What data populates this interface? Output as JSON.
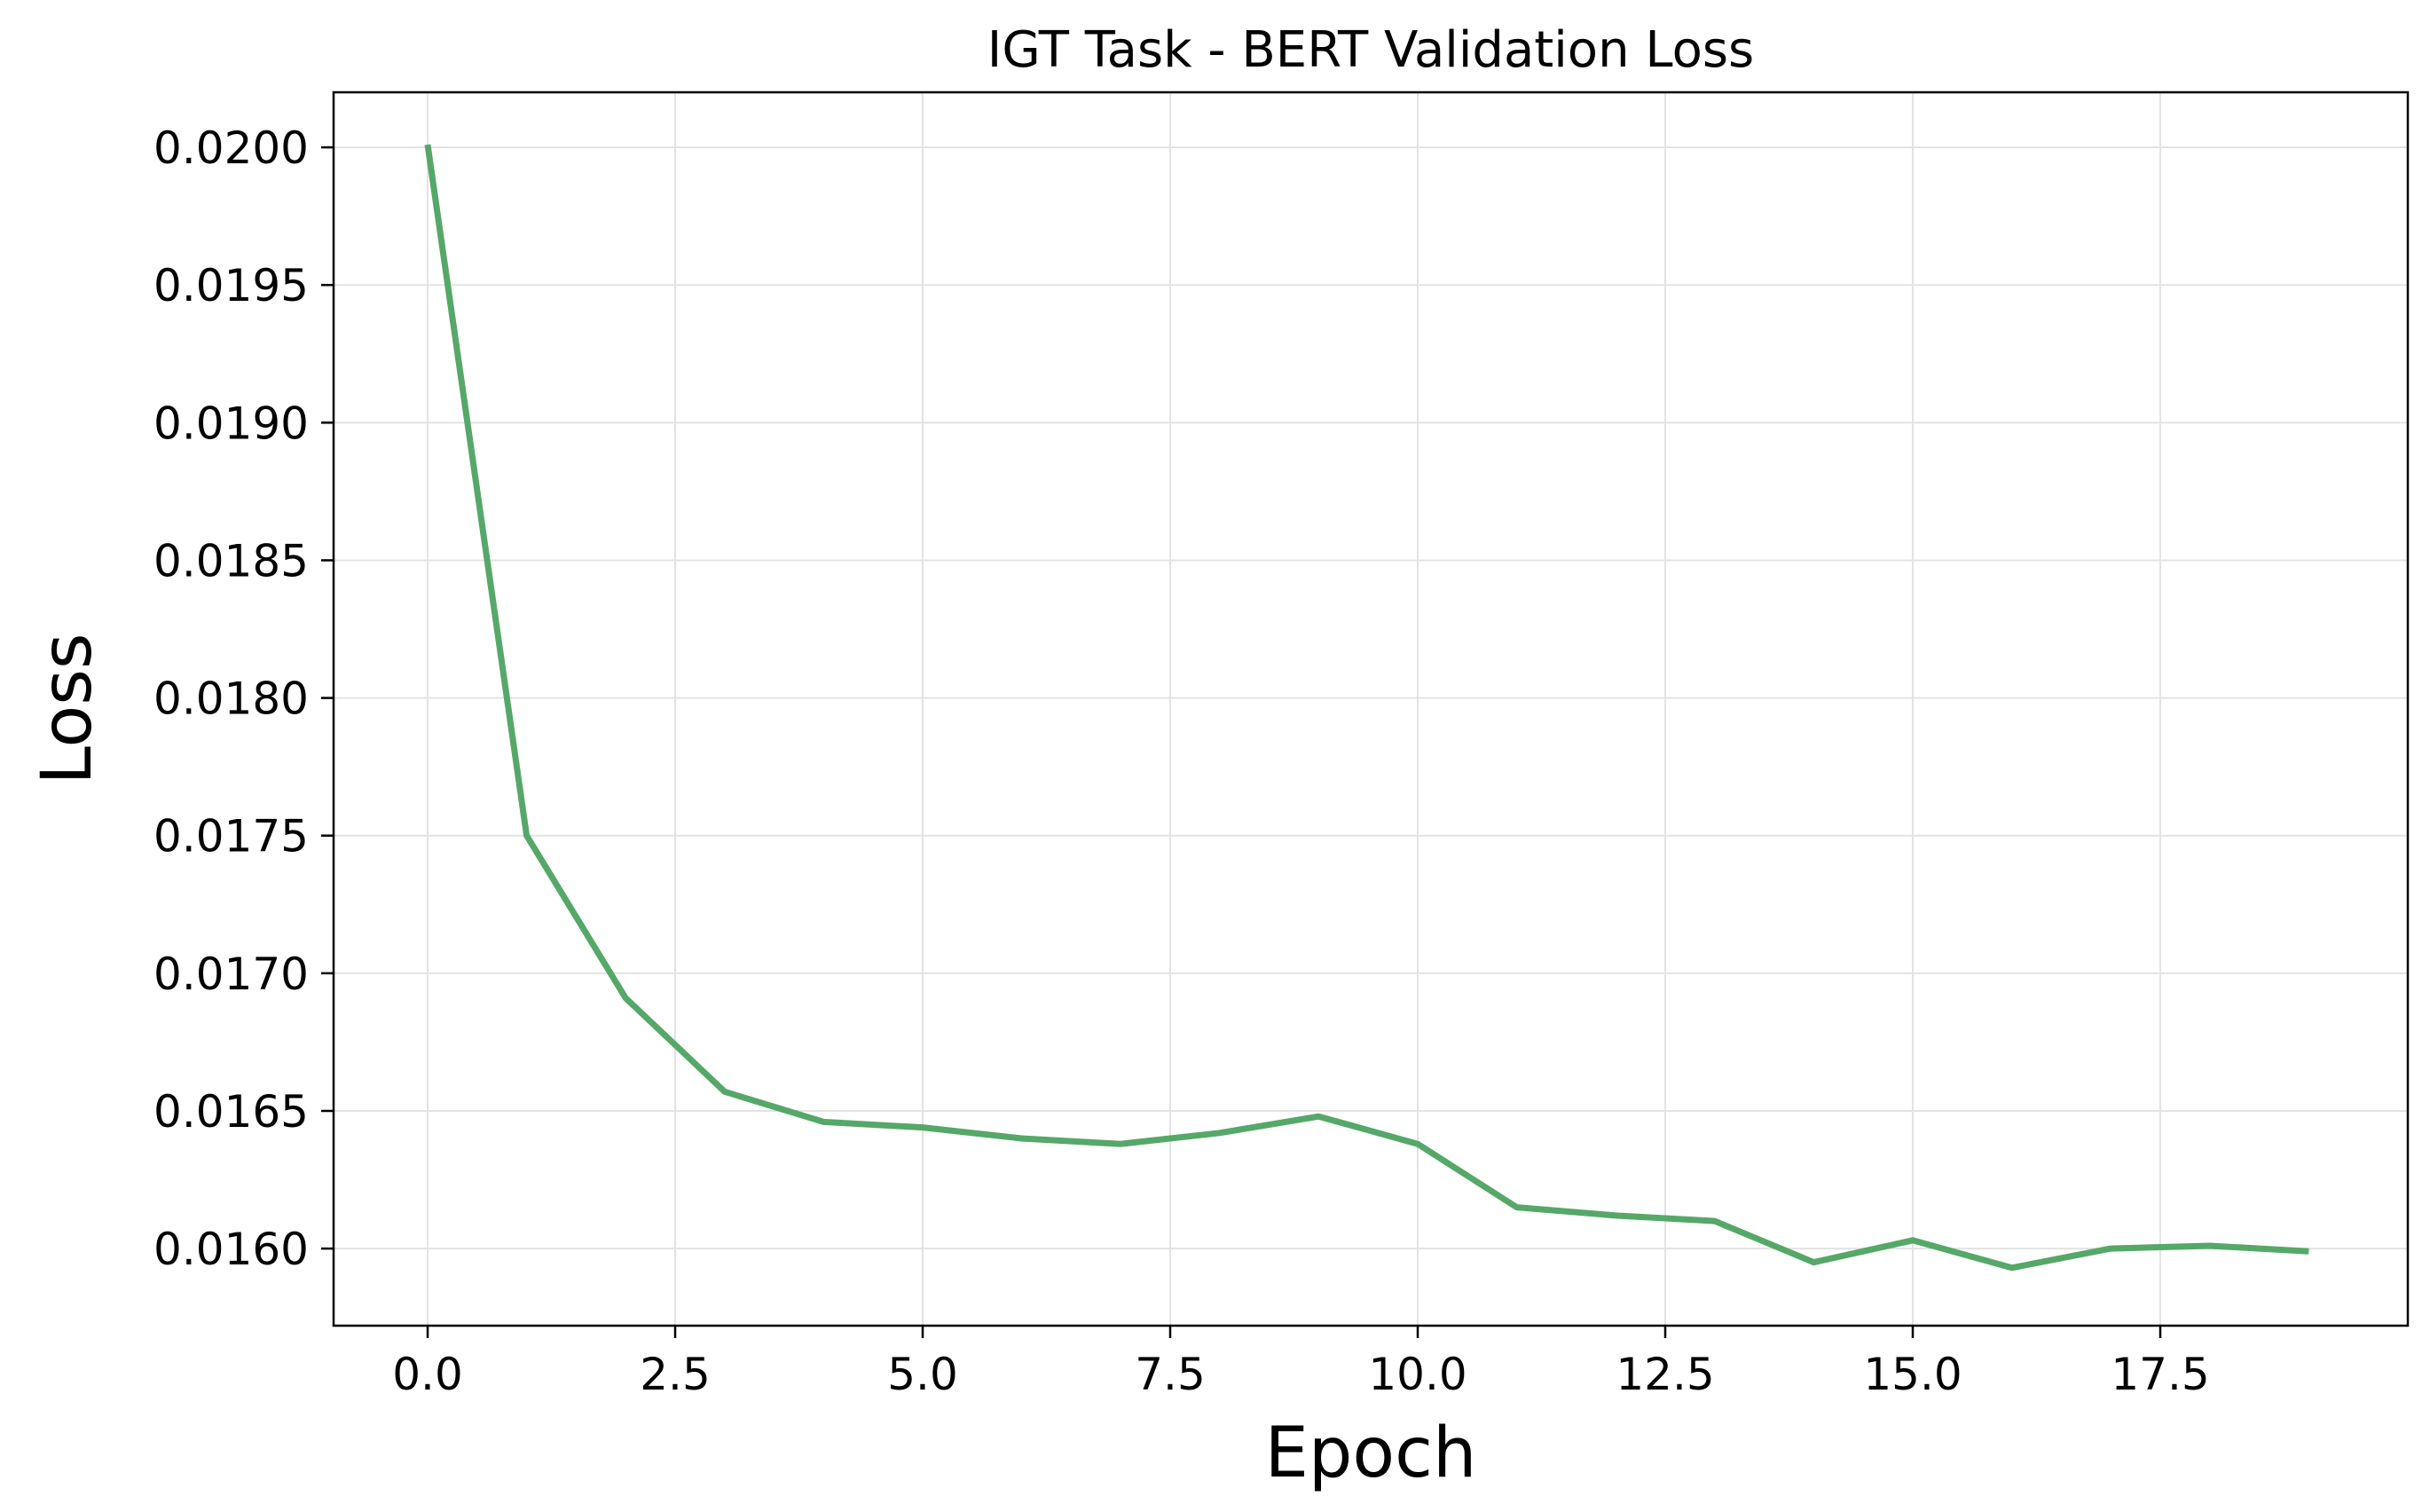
{
  "chart_data": {
    "type": "line",
    "title": "IGT Task - BERT Validation Loss",
    "xlabel": "Epoch",
    "ylabel": "Loss",
    "xlim": [
      -0.95,
      20.0
    ],
    "ylim": [
      0.01572,
      0.0202
    ],
    "grid": true,
    "legend": "none",
    "x_ticks": [
      0.0,
      2.5,
      5.0,
      7.5,
      10.0,
      12.5,
      15.0,
      17.5
    ],
    "x_tick_labels": [
      "0.0",
      "2.5",
      "5.0",
      "7.5",
      "10.0",
      "12.5",
      "15.0",
      "17.5"
    ],
    "y_ticks": [
      0.016,
      0.0165,
      0.017,
      0.0175,
      0.018,
      0.0185,
      0.019,
      0.0195,
      0.02
    ],
    "y_tick_labels": [
      "0.0160",
      "0.0165",
      "0.0170",
      "0.0175",
      "0.0180",
      "0.0185",
      "0.0190",
      "0.0195",
      "0.0200"
    ],
    "series": [
      {
        "color": "#55a868",
        "x": [
          0,
          1,
          2,
          3,
          4,
          5,
          6,
          7,
          8,
          9,
          10,
          11,
          12,
          13,
          14,
          15,
          16,
          17,
          18,
          19
        ],
        "y": [
          0.02001,
          0.0175,
          0.01691,
          0.01657,
          0.01646,
          0.01644,
          0.0164,
          0.01638,
          0.01642,
          0.01648,
          0.01638,
          0.01615,
          0.01612,
          0.0161,
          0.01595,
          0.01603,
          0.01593,
          0.016,
          0.01601,
          0.01599
        ]
      }
    ]
  }
}
